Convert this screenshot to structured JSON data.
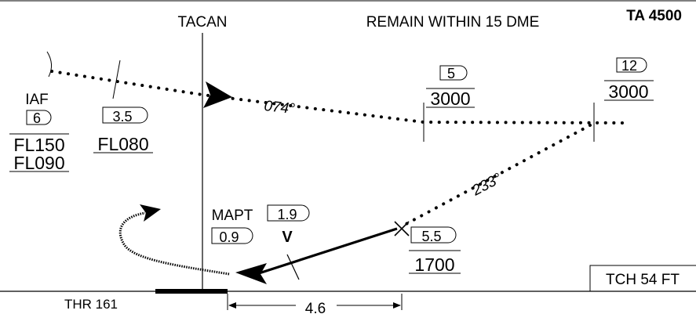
{
  "header": {
    "fix_label": "TACAN",
    "restriction": "REMAIN WITHIN 15 DME",
    "transition_altitude": "TA 4500"
  },
  "iaf": {
    "label": "IAF",
    "dme": "6",
    "alt_upper": "FL150",
    "alt_lower": "FL090"
  },
  "step_fix": {
    "dme": "3.5",
    "altitude": "FL080"
  },
  "outbound_track": "074°",
  "inbound_track": "233°",
  "fix_5dme": {
    "dme": "5",
    "altitude": "3000"
  },
  "fix_12dme": {
    "dme": "12",
    "altitude": "3000"
  },
  "faf": {
    "dme": "5.5",
    "altitude": "1700"
  },
  "vdp": {
    "dme": "1.9",
    "label": "V"
  },
  "mapt": {
    "label": "MAPT",
    "dme": "0.9"
  },
  "threshold": "THR 161",
  "distance": "4.6",
  "tch": "TCH 54 FT"
}
